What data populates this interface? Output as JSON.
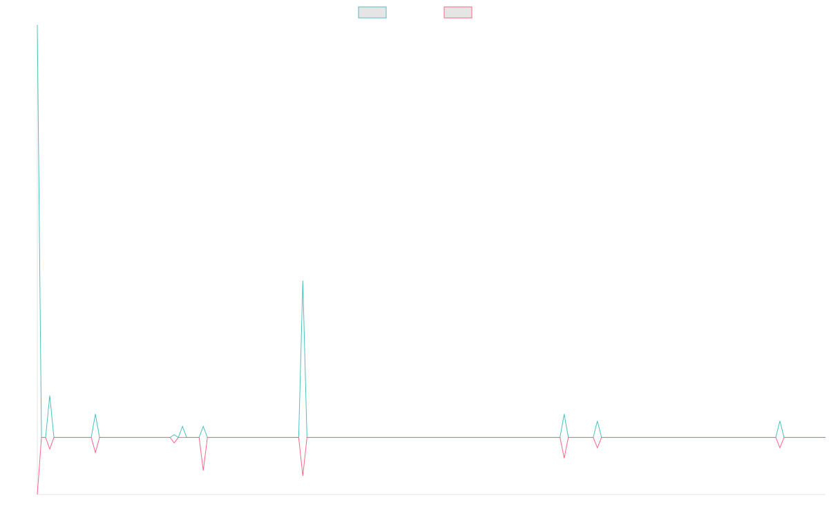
{
  "chart_data": {
    "type": "line",
    "x": [
      0,
      1,
      2,
      3,
      4,
      13,
      14,
      15,
      32,
      33,
      34,
      35,
      36,
      39,
      40,
      41,
      63,
      64,
      65,
      126,
      127,
      128,
      134,
      135,
      136,
      178,
      179,
      180,
      190
    ],
    "xlim": [
      0,
      190
    ],
    "ylim": [
      -8.3,
      60
    ],
    "series": [
      {
        "color": "#4bc0c0",
        "values": [
          60,
          0,
          0,
          6.1,
          0,
          0,
          3.4,
          0,
          0,
          0.4,
          0,
          1.6,
          0,
          0,
          1.6,
          0,
          0,
          22.8,
          0,
          0,
          3.4,
          0,
          0,
          2.4,
          0,
          0,
          2.4,
          0,
          0
        ]
      },
      {
        "color": "#ff6384",
        "values": [
          -8.3,
          0,
          0,
          -1.7,
          0,
          0,
          -2.2,
          0,
          0,
          -0.8,
          0,
          0,
          0,
          0,
          -4.8,
          0,
          0,
          -5.6,
          0,
          0,
          -3.0,
          0,
          0,
          -1.5,
          0,
          0,
          -1.5,
          0,
          0
        ]
      }
    ],
    "legend": "top"
  }
}
